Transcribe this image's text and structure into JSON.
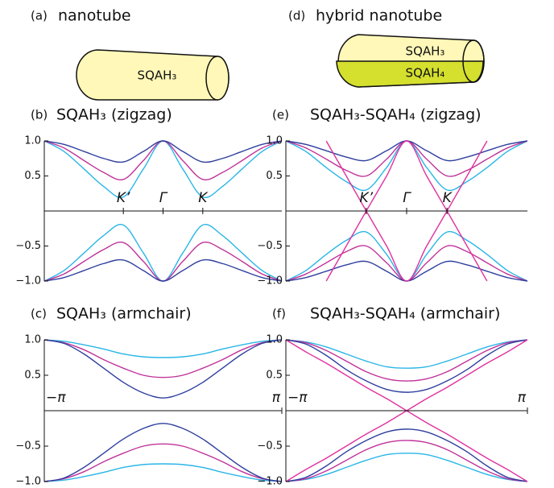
{
  "diagrams": [
    {
      "label": "(a)",
      "title": "nanotube",
      "texts": [
        "SQAH₃"
      ]
    },
    {
      "label": "(d)",
      "title": "hybrid nanotube",
      "texts": [
        "SQAH₃",
        "SQAH₄"
      ]
    }
  ],
  "chart_data": [
    {
      "type": "line",
      "label": "(b)",
      "title": "SQAH₃ (zigzag)",
      "x": [
        -3.14,
        -2.62,
        -2.09,
        -1.57,
        -1.05,
        -0.52,
        0,
        0.52,
        1.05,
        1.57,
        2.09,
        2.62,
        3.14
      ],
      "xlim": [
        -3.14,
        3.14
      ],
      "ylim": [
        -1,
        1
      ],
      "xticks": [
        {
          "value": -1.05,
          "label": "K’"
        },
        {
          "value": 0,
          "label": "Γ"
        },
        {
          "value": 1.05,
          "label": "K"
        }
      ],
      "yticks": [
        {
          "value": 1,
          "label": "1.0"
        },
        0.5,
        {
          "value": -0.5,
          "label": "−0.5"
        },
        {
          "value": -1,
          "label": "−1.0"
        }
      ],
      "series": [
        {
          "color": "#29b6e6",
          "values": [
            1,
            0.85,
            0.6,
            0.35,
            0.2,
            0.6,
            1,
            0.6,
            0.2,
            0.35,
            0.6,
            0.85,
            1
          ]
        },
        {
          "color": "#c0339a",
          "values": [
            1,
            0.9,
            0.72,
            0.55,
            0.45,
            0.72,
            1,
            0.72,
            0.45,
            0.55,
            0.72,
            0.9,
            1
          ]
        },
        {
          "color": "#2f3f9e",
          "values": [
            1,
            0.95,
            0.85,
            0.75,
            0.7,
            0.85,
            1,
            0.85,
            0.7,
            0.75,
            0.85,
            0.95,
            1
          ]
        },
        {
          "color": "#29b6e6",
          "values": [
            -1,
            -0.85,
            -0.6,
            -0.35,
            -0.2,
            -0.6,
            -1,
            -0.6,
            -0.2,
            -0.35,
            -0.6,
            -0.85,
            -1
          ]
        },
        {
          "color": "#c0339a",
          "values": [
            -1,
            -0.9,
            -0.72,
            -0.55,
            -0.45,
            -0.72,
            -1,
            -0.72,
            -0.45,
            -0.55,
            -0.72,
            -0.9,
            -1
          ]
        },
        {
          "color": "#2f3f9e",
          "values": [
            -1,
            -0.95,
            -0.85,
            -0.75,
            -0.7,
            -0.85,
            -1,
            -0.85,
            -0.7,
            -0.75,
            -0.85,
            -0.95,
            -1
          ]
        }
      ]
    },
    {
      "type": "line",
      "label": "(e)",
      "title": "SQAH₃-SQAH₄ (zigzag)",
      "x": [
        -3.14,
        -2.62,
        -2.09,
        -1.57,
        -1.05,
        -0.52,
        0,
        0.52,
        1.05,
        1.57,
        2.09,
        2.62,
        3.14
      ],
      "xlim": [
        -3.14,
        3.14
      ],
      "ylim": [
        -1,
        1
      ],
      "xticks": [
        {
          "value": -1.05,
          "label": "K’"
        },
        {
          "value": 0,
          "label": "Γ"
        },
        {
          "value": 1.05,
          "label": "K"
        }
      ],
      "yticks": [
        {
          "value": 1,
          "label": "1.0"
        },
        0.5,
        {
          "value": -0.5,
          "label": "−0.5"
        },
        {
          "value": -1,
          "label": "−1.0"
        }
      ],
      "series": [
        {
          "color": "#29b6e6",
          "values": [
            1,
            0.85,
            0.62,
            0.42,
            0.3,
            0.62,
            1,
            0.62,
            0.3,
            0.42,
            0.62,
            0.85,
            1
          ]
        },
        {
          "color": "#c0339a",
          "values": [
            1,
            0.9,
            0.74,
            0.58,
            0.5,
            0.74,
            1,
            0.74,
            0.5,
            0.58,
            0.74,
            0.9,
            1
          ]
        },
        {
          "color": "#2f3f9e",
          "values": [
            1,
            0.95,
            0.86,
            0.77,
            0.72,
            0.86,
            1,
            0.86,
            0.72,
            0.77,
            0.86,
            0.95,
            1
          ]
        },
        {
          "color": "#29b6e6",
          "values": [
            -1,
            -0.85,
            -0.62,
            -0.42,
            -0.3,
            -0.62,
            -1,
            -0.62,
            -0.3,
            -0.42,
            -0.62,
            -0.85,
            -1
          ]
        },
        {
          "color": "#c0339a",
          "values": [
            -1,
            -0.9,
            -0.74,
            -0.58,
            -0.5,
            -0.74,
            -1,
            -0.74,
            -0.5,
            -0.58,
            -0.74,
            -0.9,
            -1
          ]
        },
        {
          "color": "#2f3f9e",
          "values": [
            -1,
            -0.95,
            -0.86,
            -0.77,
            -0.72,
            -0.86,
            -1,
            -0.86,
            -0.72,
            -0.77,
            -0.86,
            -0.95,
            -1
          ]
        },
        {
          "color": "#e0329f",
          "values": [
            null,
            null,
            -1,
            -0.5,
            0,
            0.5,
            1,
            0.5,
            0,
            -0.5,
            -1,
            null,
            null
          ]
        },
        {
          "color": "#e0329f",
          "values": [
            null,
            null,
            1,
            0.5,
            0,
            -0.5,
            -1,
            -0.5,
            0,
            0.5,
            1,
            null,
            null
          ]
        }
      ]
    },
    {
      "type": "line",
      "label": "(c)",
      "title": "SQAH₃ (armchair)",
      "x": [
        -3.14,
        -2.62,
        -2.09,
        -1.57,
        -1.05,
        -0.52,
        0,
        0.52,
        1.05,
        1.57,
        2.09,
        2.62,
        3.14
      ],
      "xlim": [
        -3.14,
        3.14
      ],
      "ylim": [
        -1,
        1
      ],
      "xticks": [
        {
          "value": -3.14,
          "label": "−π"
        },
        {
          "value": 3.14,
          "label": "π"
        }
      ],
      "yticks": [
        {
          "value": 1,
          "label": "1.0"
        },
        0.5,
        {
          "value": -0.5,
          "label": "−0.5"
        },
        {
          "value": -1,
          "label": "−1.0"
        }
      ],
      "series": [
        {
          "color": "#29b6e6",
          "values": [
            1,
            0.98,
            0.93,
            0.87,
            0.8,
            0.76,
            0.75,
            0.76,
            0.8,
            0.87,
            0.93,
            0.98,
            1
          ]
        },
        {
          "color": "#c0339a",
          "values": [
            1,
            0.96,
            0.86,
            0.72,
            0.6,
            0.5,
            0.47,
            0.5,
            0.6,
            0.72,
            0.86,
            0.96,
            1
          ]
        },
        {
          "color": "#2f3f9e",
          "values": [
            1,
            0.95,
            0.8,
            0.6,
            0.4,
            0.25,
            0.18,
            0.25,
            0.4,
            0.6,
            0.8,
            0.95,
            1
          ]
        },
        {
          "color": "#29b6e6",
          "values": [
            -1,
            -0.98,
            -0.93,
            -0.87,
            -0.8,
            -0.76,
            -0.75,
            -0.76,
            -0.8,
            -0.87,
            -0.93,
            -0.98,
            -1
          ]
        },
        {
          "color": "#c0339a",
          "values": [
            -1,
            -0.96,
            -0.86,
            -0.72,
            -0.6,
            -0.5,
            -0.47,
            -0.5,
            -0.6,
            -0.72,
            -0.86,
            -0.96,
            -1
          ]
        },
        {
          "color": "#2f3f9e",
          "values": [
            -1,
            -0.95,
            -0.8,
            -0.6,
            -0.4,
            -0.25,
            -0.18,
            -0.25,
            -0.4,
            -0.6,
            -0.8,
            -0.95,
            -1
          ]
        }
      ]
    },
    {
      "type": "line",
      "label": "(f)",
      "title": "SQAH₃-SQAH₄ (armchair)",
      "x": [
        -3.14,
        -2.62,
        -2.09,
        -1.57,
        -1.05,
        -0.52,
        0,
        0.52,
        1.05,
        1.57,
        2.09,
        2.62,
        3.14
      ],
      "xlim": [
        -3.14,
        3.14
      ],
      "ylim": [
        -1,
        1
      ],
      "xticks": [
        {
          "value": -3.14,
          "label": "−π"
        },
        {
          "value": 3.14,
          "label": "π"
        }
      ],
      "yticks": [
        {
          "value": 1,
          "label": "1.0"
        },
        0.5,
        {
          "value": -0.5,
          "label": "−0.5"
        },
        {
          "value": -1,
          "label": "−1.0"
        }
      ],
      "series": [
        {
          "color": "#29b6e6",
          "values": [
            1,
            0.97,
            0.9,
            0.8,
            0.7,
            0.62,
            0.6,
            0.62,
            0.7,
            0.8,
            0.9,
            0.97,
            1
          ]
        },
        {
          "color": "#c0339a",
          "values": [
            1,
            0.96,
            0.85,
            0.7,
            0.55,
            0.45,
            0.42,
            0.45,
            0.55,
            0.7,
            0.85,
            0.96,
            1
          ]
        },
        {
          "color": "#2f3f9e",
          "values": [
            1,
            0.94,
            0.78,
            0.58,
            0.42,
            0.3,
            0.26,
            0.3,
            0.42,
            0.58,
            0.78,
            0.94,
            1
          ]
        },
        {
          "color": "#29b6e6",
          "values": [
            -1,
            -0.97,
            -0.9,
            -0.8,
            -0.7,
            -0.62,
            -0.6,
            -0.62,
            -0.7,
            -0.8,
            -0.9,
            -0.97,
            -1
          ]
        },
        {
          "color": "#c0339a",
          "values": [
            -1,
            -0.96,
            -0.85,
            -0.7,
            -0.55,
            -0.45,
            -0.42,
            -0.45,
            -0.55,
            -0.7,
            -0.85,
            -0.96,
            -1
          ]
        },
        {
          "color": "#2f3f9e",
          "values": [
            -1,
            -0.94,
            -0.78,
            -0.58,
            -0.42,
            -0.3,
            -0.26,
            -0.3,
            -0.42,
            -0.58,
            -0.78,
            -0.94,
            -1
          ]
        },
        {
          "color": "#e0329f",
          "values": [
            1,
            0.83,
            0.67,
            0.5,
            0.33,
            0.17,
            0,
            -0.17,
            -0.33,
            -0.5,
            -0.67,
            -0.83,
            -1
          ]
        },
        {
          "color": "#e0329f",
          "values": [
            -1,
            -0.83,
            -0.67,
            -0.5,
            -0.33,
            -0.17,
            0,
            0.17,
            0.33,
            0.5,
            0.67,
            0.83,
            1
          ]
        }
      ]
    }
  ]
}
